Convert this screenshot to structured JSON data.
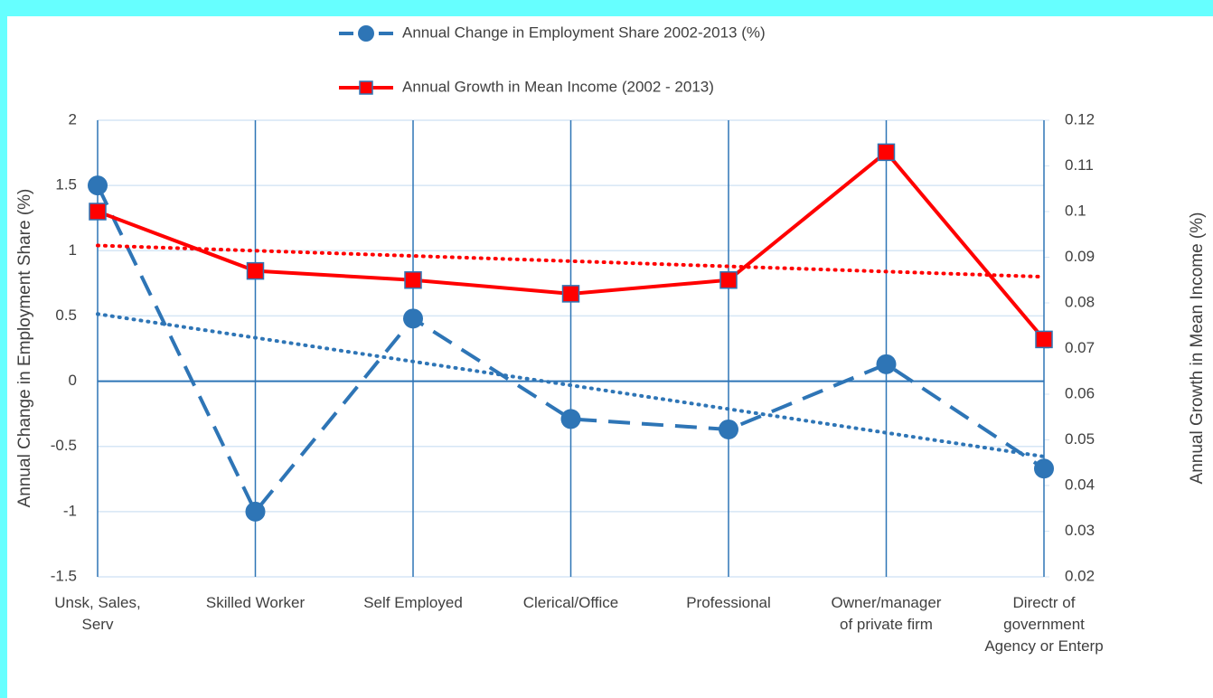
{
  "chart_data": {
    "type": "line",
    "categories": [
      "Unsk, Sales, Serv",
      "Skilled Worker",
      "Self Employed",
      "Clerical/Office",
      "Professional",
      "Owner/manager of private firm",
      "Directr  of government Agency or Enterp"
    ],
    "series": [
      {
        "name": "Annual  Change in Employment Share 2002-2013 (%)",
        "color": "#2e75b6",
        "values": [
          1.5,
          -1,
          0.48,
          -0.29,
          -0.37,
          0.13,
          -0.67
        ],
        "axis": "y",
        "marker": "circle",
        "dashed": true
      },
      {
        "name": "Annual  Growth in Mean Income (2002 - 2013)",
        "color": "#ff0000",
        "values": [
          0.1,
          0.087,
          0.085,
          0.082,
          0.085,
          0.113,
          0.072
        ],
        "axis": "y2",
        "marker": "square",
        "dashed": false
      }
    ],
    "ylabel": "Annual Change in Employment Share (%)",
    "y2label": "Annual Growth in Mean Income (%)",
    "ylim": [
      -1.5,
      2
    ],
    "yticks": [
      2,
      1.5,
      1,
      0.5,
      0,
      -0.5,
      -1,
      -1.5
    ],
    "y2lim": [
      0.02,
      0.12
    ],
    "y2ticks": [
      0.12,
      0.11,
      0.1,
      0.09,
      0.08,
      0.07,
      0.06,
      0.05,
      0.04,
      0.03,
      0.02
    ],
    "trendline": true,
    "grid": true,
    "legend": "top"
  }
}
